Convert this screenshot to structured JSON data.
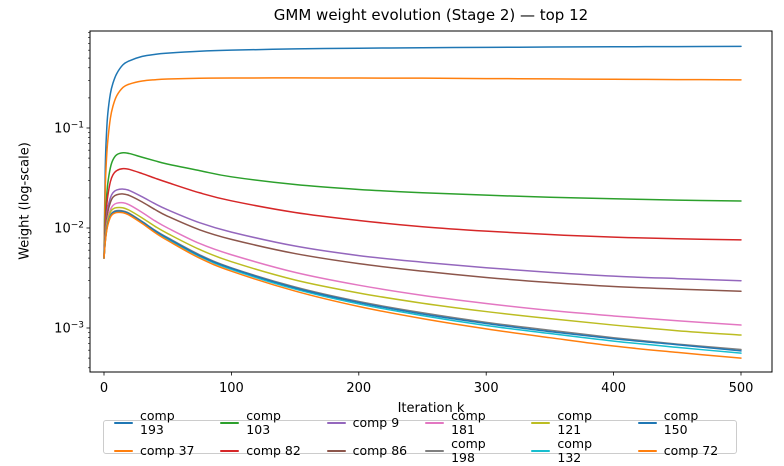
{
  "figure": {
    "title": "GMM weight evolution (Stage 2) — top 12",
    "xlabel": "Iteration k",
    "ylabel": "Weight (log-scale)"
  },
  "colors": {
    "background": "#ffffff",
    "text": "#000000",
    "spine": "#000000",
    "legend_border": "#cccccc"
  },
  "chart_data": {
    "type": "line",
    "title": "GMM weight evolution (Stage 2) — top 12",
    "xlabel": "Iteration k",
    "ylabel": "Weight (log-scale)",
    "x_scale": "linear",
    "y_scale": "log",
    "xlim": [
      -11,
      524
    ],
    "ylim": [
      0.00036,
      0.93
    ],
    "grid": false,
    "legend_position": "below-center",
    "legend_columns": 6,
    "x_ticks": [
      0,
      100,
      200,
      300,
      400,
      500
    ],
    "y_major_ticks": [
      0.1,
      0.01,
      0.001
    ],
    "y_tick_labels": [
      {
        "base": "10",
        "exp": "−1"
      },
      {
        "base": "10",
        "exp": "−2"
      },
      {
        "base": "10",
        "exp": "−3"
      }
    ],
    "x": [
      0,
      1,
      2,
      3,
      5,
      7,
      10,
      15,
      20,
      30,
      40,
      50,
      75,
      100,
      150,
      200,
      250,
      300,
      350,
      400,
      450,
      500
    ],
    "series": [
      {
        "name": "comp 193",
        "color": "#1f77b4",
        "values": [
          0.005,
          0.04,
          0.09,
          0.14,
          0.22,
          0.28,
          0.35,
          0.43,
          0.47,
          0.52,
          0.545,
          0.56,
          0.585,
          0.6,
          0.618,
          0.628,
          0.635,
          0.64,
          0.645,
          0.649,
          0.652,
          0.655
        ]
      },
      {
        "name": "comp 37",
        "color": "#ff7f0e",
        "values": [
          0.005,
          0.025,
          0.05,
          0.075,
          0.125,
          0.165,
          0.21,
          0.255,
          0.275,
          0.295,
          0.304,
          0.309,
          0.314,
          0.316,
          0.317,
          0.316,
          0.315,
          0.312,
          0.31,
          0.307,
          0.305,
          0.303
        ]
      },
      {
        "name": "comp 103",
        "color": "#2ca02c",
        "values": [
          0.005,
          0.012,
          0.02,
          0.028,
          0.04,
          0.048,
          0.054,
          0.0565,
          0.0555,
          0.051,
          0.047,
          0.0435,
          0.0375,
          0.0325,
          0.0272,
          0.0243,
          0.0225,
          0.0213,
          0.0203,
          0.0196,
          0.019,
          0.0186
        ]
      },
      {
        "name": "comp 82",
        "color": "#d62728",
        "values": [
          0.005,
          0.01,
          0.016,
          0.021,
          0.029,
          0.034,
          0.0375,
          0.0392,
          0.0385,
          0.035,
          0.0315,
          0.0285,
          0.0225,
          0.0187,
          0.0143,
          0.0119,
          0.0103,
          0.0093,
          0.0086,
          0.0081,
          0.0078,
          0.0076
        ]
      },
      {
        "name": "comp 9",
        "color": "#9467bd",
        "values": [
          0.005,
          0.009,
          0.013,
          0.016,
          0.02,
          0.0225,
          0.024,
          0.0245,
          0.0237,
          0.0205,
          0.0175,
          0.0152,
          0.0113,
          0.0091,
          0.0066,
          0.0053,
          0.00455,
          0.004,
          0.0036,
          0.0033,
          0.00312,
          0.00297
        ]
      },
      {
        "name": "comp 86",
        "color": "#8c564b",
        "values": [
          0.005,
          0.0085,
          0.012,
          0.0145,
          0.018,
          0.0203,
          0.0215,
          0.0219,
          0.0211,
          0.0182,
          0.0153,
          0.0131,
          0.0096,
          0.0077,
          0.00555,
          0.0044,
          0.0037,
          0.0032,
          0.00285,
          0.0026,
          0.00245,
          0.00233
        ]
      },
      {
        "name": "comp 181",
        "color": "#e377c2",
        "values": [
          0.005,
          0.008,
          0.0105,
          0.0125,
          0.0152,
          0.0168,
          0.0177,
          0.0179,
          0.017,
          0.0143,
          0.0118,
          0.01,
          0.007,
          0.0054,
          0.0036,
          0.00268,
          0.00212,
          0.00176,
          0.0015,
          0.00132,
          0.00118,
          0.00107
        ]
      },
      {
        "name": "comp 198",
        "color": "#7f7f7f",
        "values": [
          0.005,
          0.0075,
          0.0096,
          0.0112,
          0.0134,
          0.0144,
          0.0149,
          0.0148,
          0.014,
          0.0116,
          0.0095,
          0.008,
          0.0054,
          0.004,
          0.00257,
          0.00184,
          0.00142,
          0.00114,
          0.00095,
          0.0008,
          0.00069,
          0.00061
        ]
      },
      {
        "name": "comp 121",
        "color": "#bcbd22",
        "values": [
          0.005,
          0.0078,
          0.0102,
          0.012,
          0.0144,
          0.0155,
          0.016,
          0.0159,
          0.015,
          0.0126,
          0.0104,
          0.0088,
          0.0061,
          0.0046,
          0.00302,
          0.00224,
          0.00177,
          0.00146,
          0.00124,
          0.00107,
          0.00094,
          0.00085
        ]
      },
      {
        "name": "comp 132",
        "color": "#17becf",
        "values": [
          0.005,
          0.0073,
          0.0094,
          0.0109,
          0.013,
          0.014,
          0.0145,
          0.0144,
          0.0136,
          0.0113,
          0.0092,
          0.0077,
          0.0052,
          0.00385,
          0.00245,
          0.00174,
          0.00133,
          0.00106,
          0.00088,
          0.00074,
          0.00064,
          0.00056
        ]
      },
      {
        "name": "comp 150",
        "color": "#1f77b4",
        "values": [
          0.005,
          0.0074,
          0.0095,
          0.0111,
          0.0132,
          0.0142,
          0.0147,
          0.0146,
          0.0138,
          0.0115,
          0.0094,
          0.0079,
          0.0053,
          0.00395,
          0.00252,
          0.0018,
          0.00138,
          0.00111,
          0.00092,
          0.00078,
          0.00068,
          0.00059
        ]
      },
      {
        "name": "comp 72",
        "color": "#ff7f0e",
        "values": [
          0.005,
          0.0072,
          0.0092,
          0.0107,
          0.0128,
          0.0138,
          0.0143,
          0.0142,
          0.0134,
          0.0111,
          0.009,
          0.0075,
          0.005,
          0.0037,
          0.00234,
          0.00164,
          0.00124,
          0.00098,
          0.0008,
          0.00066,
          0.00057,
          0.0005
        ]
      }
    ]
  }
}
